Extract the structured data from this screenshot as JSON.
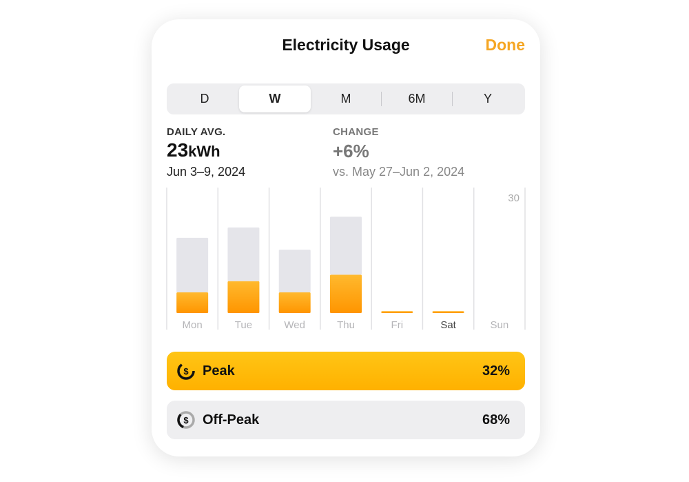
{
  "header": {
    "title": "Electricity Usage",
    "done": "Done"
  },
  "segments": [
    "D",
    "W",
    "M",
    "6M",
    "Y"
  ],
  "summary": {
    "daily_avg_label": "DAILY AVG.",
    "daily_avg_value": "23",
    "daily_avg_unit": "kWh",
    "date_range": "Jun 3–9, 2024",
    "change_label": "CHANGE",
    "change_value": "+6%",
    "comparison": "vs. May 27–Jun 2, 2024"
  },
  "chart_data": {
    "type": "bar",
    "stacked": true,
    "categories": [
      "Mon",
      "Tue",
      "Wed",
      "Thu",
      "Fri",
      "Sat",
      "Sun"
    ],
    "series": [
      {
        "color": "#ff9500",
        "values": [
          5.4,
          8.3,
          5.4,
          10,
          0.5,
          0.5,
          null
        ]
      },
      {
        "color": "#e5e5ea",
        "values": [
          14.2,
          14,
          11.1,
          15.1,
          0,
          0,
          null
        ]
      }
    ],
    "ylim": [
      0,
      30
    ],
    "yticks": [
      30
    ]
  },
  "breakdown": [
    {
      "label": "Peak",
      "value": "32%"
    },
    {
      "label": "Off-Peak",
      "value": "68%"
    }
  ]
}
